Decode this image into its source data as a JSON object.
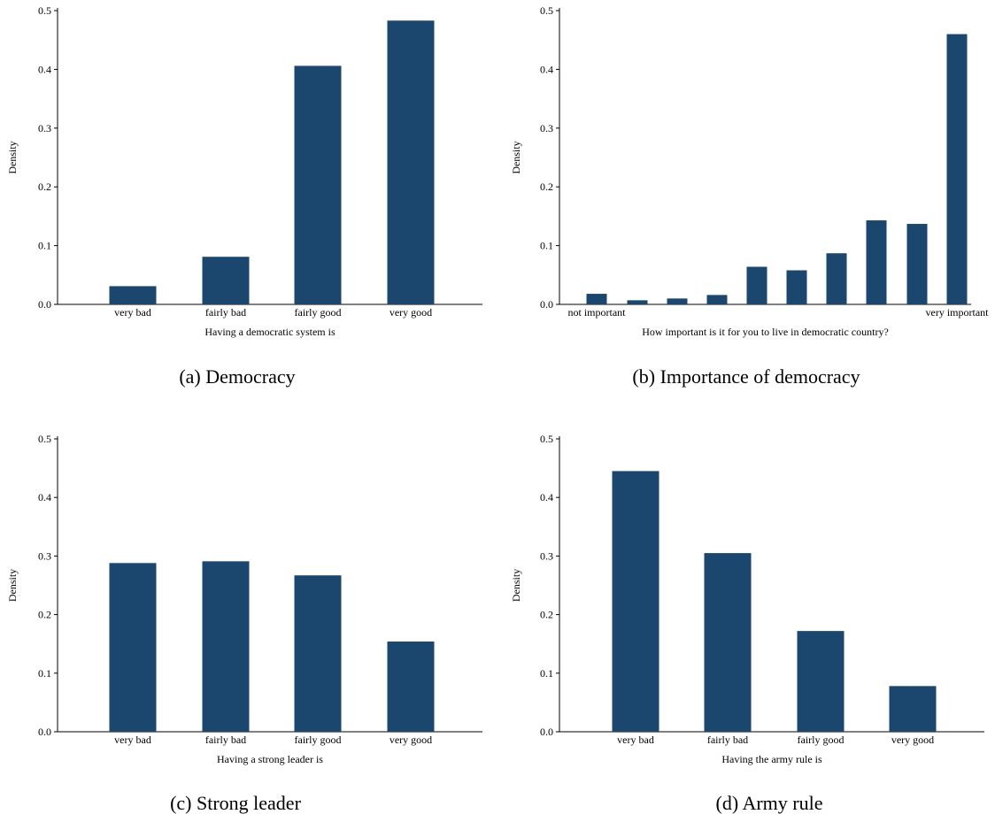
{
  "chart_data": [
    {
      "type": "bar",
      "caption": "(a) Democracy",
      "xlabel": "Having a democratic system is",
      "ylabel": "Density",
      "ylim": [
        0,
        0.5
      ],
      "yticks": [
        "0.0",
        "0.1",
        "0.2",
        "0.3",
        "0.4",
        "0.5"
      ],
      "categories": [
        "very bad",
        "fairly bad",
        "fairly good",
        "very good"
      ],
      "values": [
        0.031,
        0.081,
        0.406,
        0.483
      ],
      "bar_color": "#1b466d"
    },
    {
      "type": "bar",
      "caption": "(b) Importance of democracy",
      "xlabel": "How important is it for you to live in democratic country?",
      "ylabel": "Density",
      "ylim": [
        0,
        0.5
      ],
      "yticks": [
        "0.0",
        "0.1",
        "0.2",
        "0.3",
        "0.4",
        "0.5"
      ],
      "categories": [
        "not important",
        "",
        "",
        "",
        "",
        "",
        "",
        "",
        "",
        "very important"
      ],
      "values": [
        0.018,
        0.007,
        0.01,
        0.016,
        0.064,
        0.058,
        0.087,
        0.143,
        0.137,
        0.46
      ],
      "bar_color": "#1b466d"
    },
    {
      "type": "bar",
      "caption": "(c) Strong leader",
      "xlabel": "Having a strong leader is",
      "ylabel": "Density",
      "ylim": [
        0,
        0.5
      ],
      "yticks": [
        "0.0",
        "0.1",
        "0.2",
        "0.3",
        "0.4",
        "0.5"
      ],
      "categories": [
        "very bad",
        "fairly bad",
        "fairly good",
        "very good"
      ],
      "values": [
        0.288,
        0.291,
        0.267,
        0.154
      ],
      "bar_color": "#1b466d"
    },
    {
      "type": "bar",
      "caption": "(d) Army rule",
      "xlabel": "Having the army rule is",
      "ylabel": "Density",
      "ylim": [
        0,
        0.5
      ],
      "yticks": [
        "0.0",
        "0.1",
        "0.2",
        "0.3",
        "0.4",
        "0.5"
      ],
      "categories": [
        "very bad",
        "fairly bad",
        "fairly good",
        "very good"
      ],
      "values": [
        0.445,
        0.305,
        0.172,
        0.078
      ],
      "bar_color": "#1b466d"
    }
  ]
}
